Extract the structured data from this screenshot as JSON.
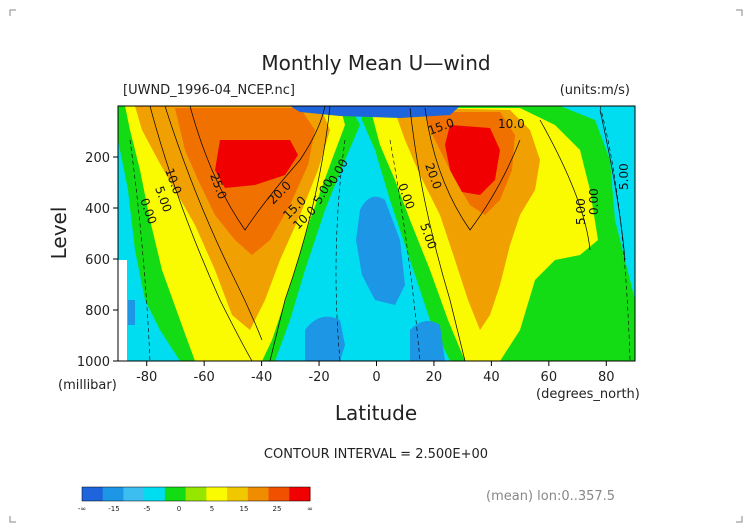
{
  "chart_data": {
    "type": "heatmap",
    "title": "Monthly Mean U—wind",
    "subtitle_left": "[UWND_1996-04_NCEP.nc]",
    "subtitle_right": "(units:m/s)",
    "xlabel": "Latitude",
    "x_unit": "(degrees_north)",
    "ylabel": "Level",
    "y_unit": "(millibar)",
    "xlim": [
      -90,
      90
    ],
    "ylim": [
      1000,
      0
    ],
    "x_ticks": [
      -80,
      -60,
      -40,
      -20,
      0,
      20,
      40,
      60,
      80
    ],
    "y_ticks": [
      200,
      400,
      600,
      800,
      1000
    ],
    "contour_interval_text": "CONTOUR INTERVAL = 2.500E+00",
    "footnote": "(mean) lon:0..357.5",
    "levels": [
      -15,
      -5,
      0,
      5,
      15,
      25
    ],
    "colorbar_labels": [
      "-∞",
      "-15",
      "-5",
      "0",
      "5",
      "15",
      "25",
      "∞"
    ],
    "colorbar_colors": [
      "#1e64dc",
      "#1e96e6",
      "#3cbef0",
      "#00dcf0",
      "#14dc14",
      "#96e600",
      "#fafa00",
      "#f0c800",
      "#f08c00",
      "#f05000",
      "#f00000"
    ],
    "features": [
      {
        "kind": "jet_max",
        "center_lat": -52,
        "center_level": 250,
        "max_value": 30
      },
      {
        "kind": "jet_max",
        "center_lat": 32,
        "center_level": 200,
        "max_value": 32.5
      },
      {
        "kind": "easterlies",
        "center_lat": -5,
        "center_level": 450,
        "value": -5
      }
    ],
    "contour_labels": [
      "10.0",
      "5.00",
      "0.00",
      "25.0",
      "20.0",
      "15.0",
      "10.0",
      "5.00",
      "0.00",
      "15.0",
      "10.0",
      "20.0",
      "0.00",
      "5.00",
      "5.00",
      "0.00",
      "5.00"
    ]
  }
}
